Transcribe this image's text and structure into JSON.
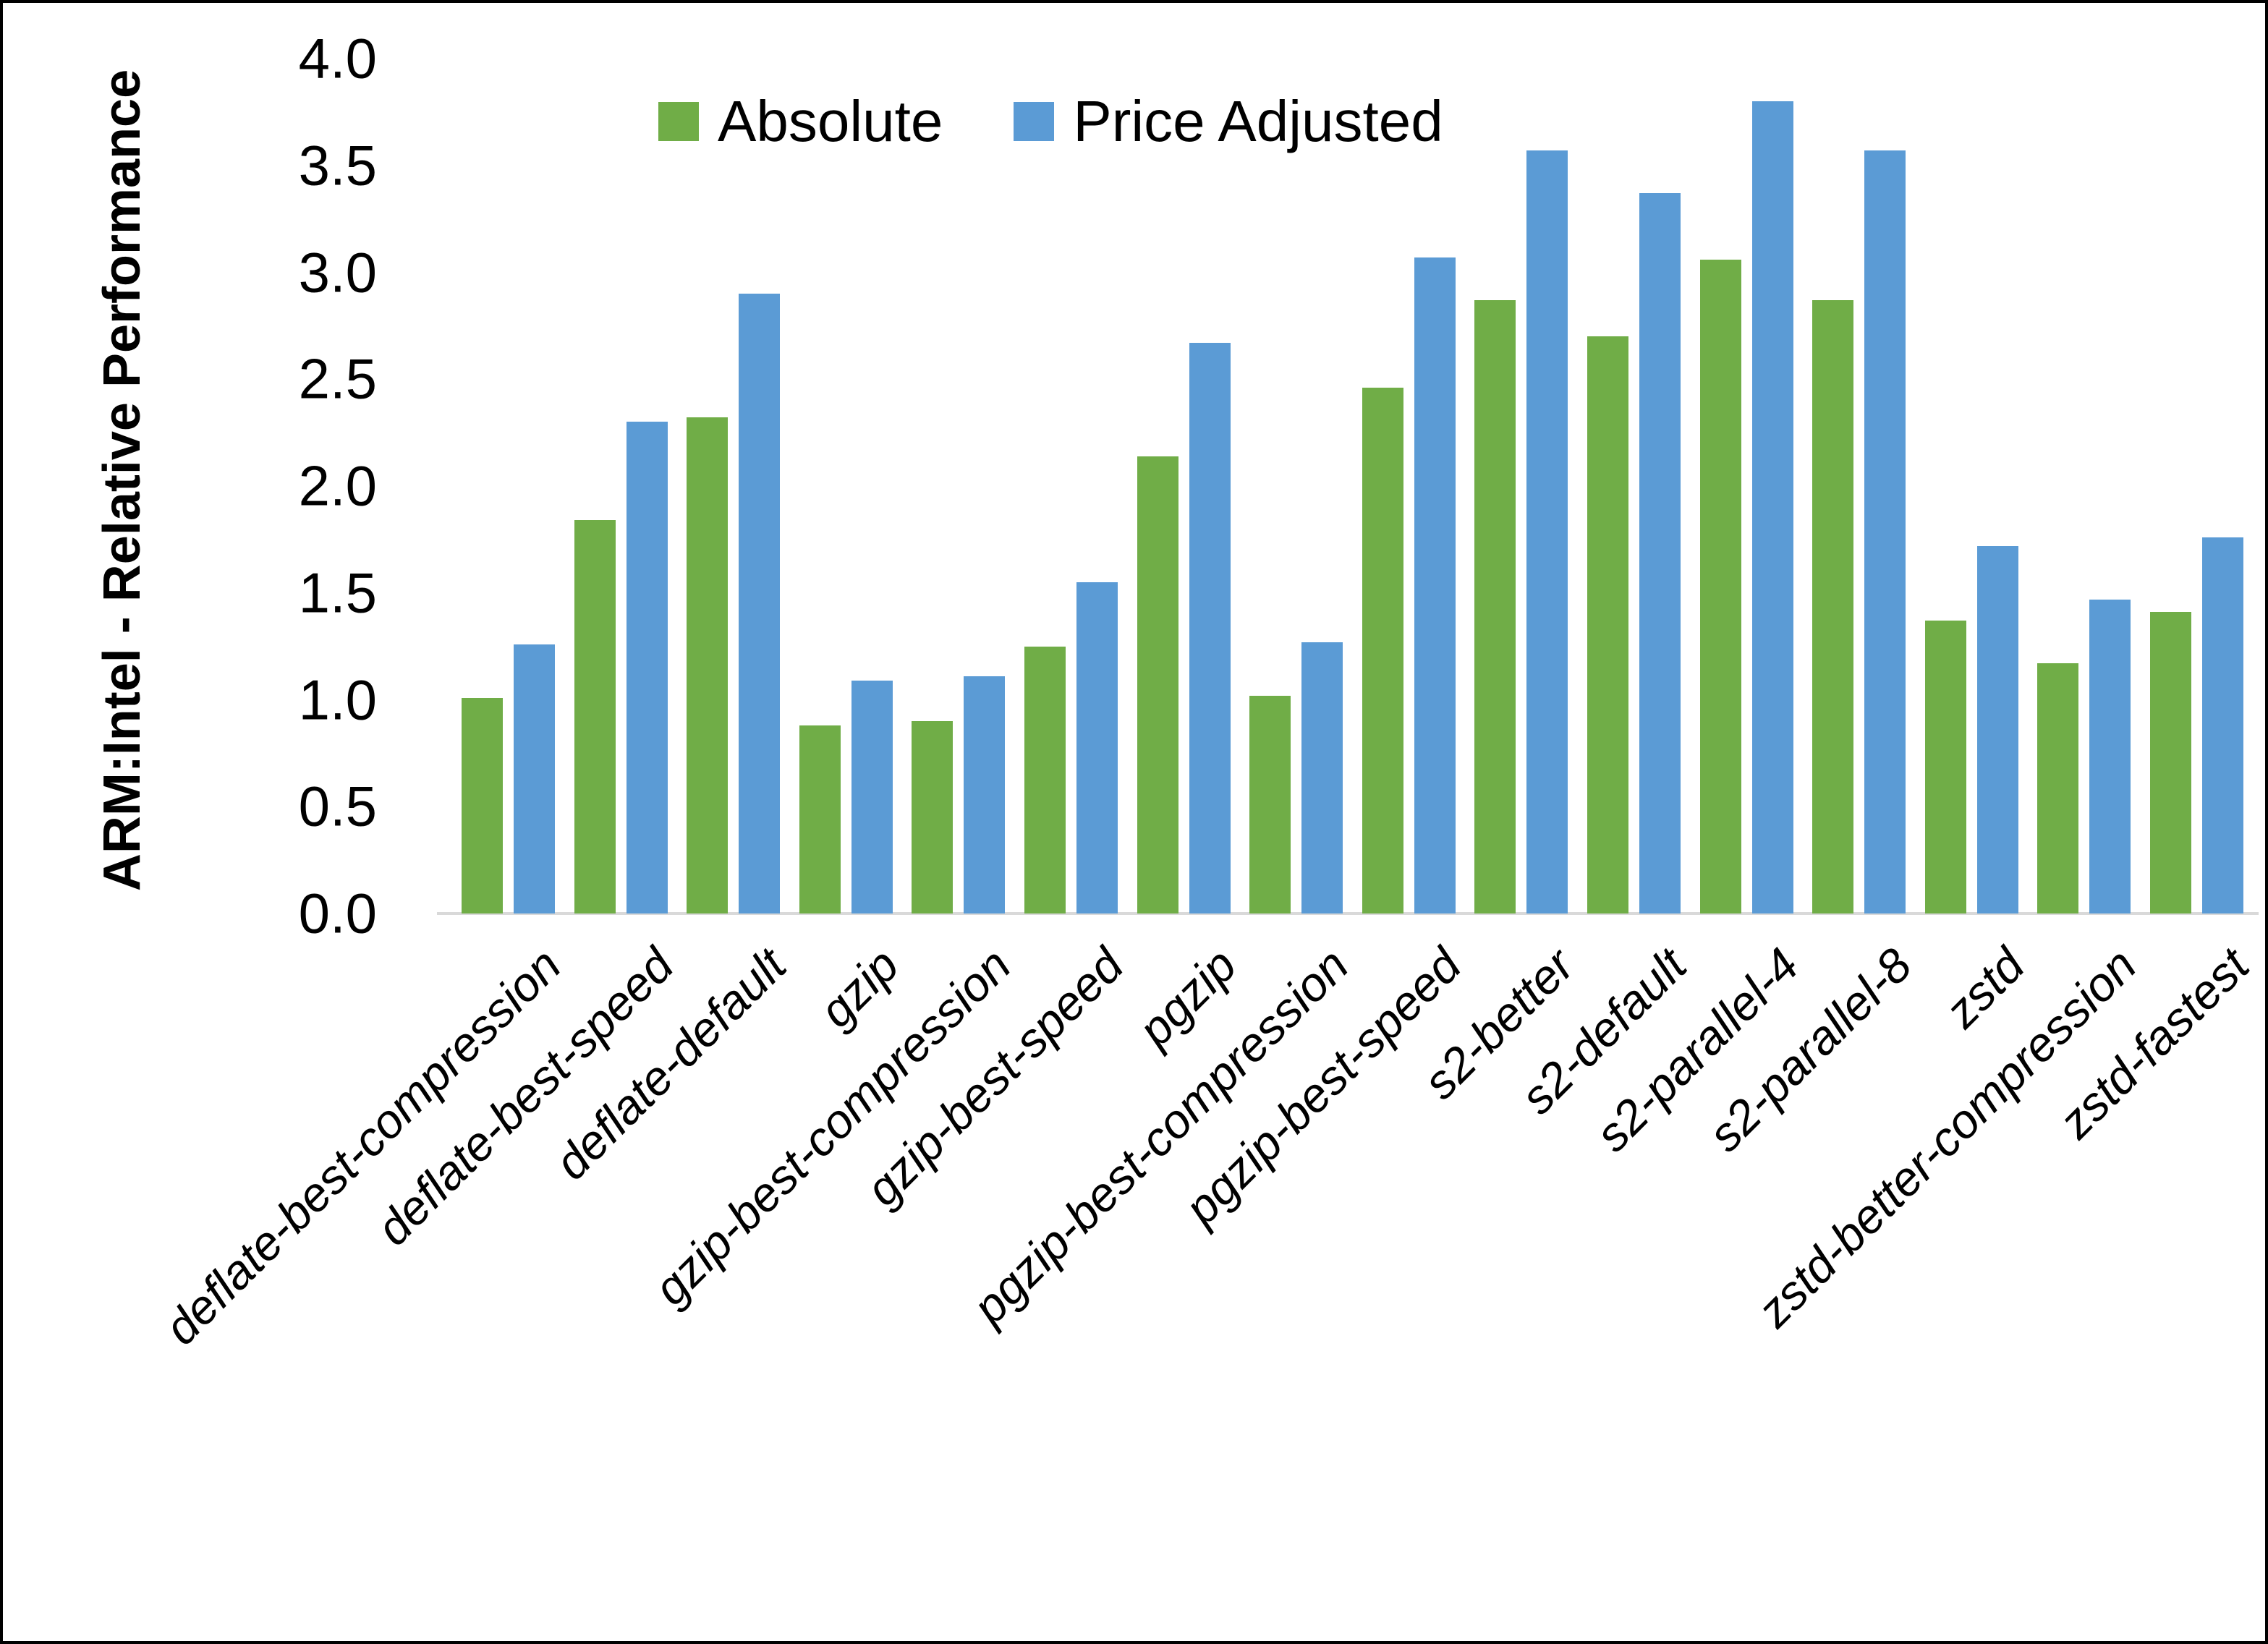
{
  "chart_data": {
    "type": "bar",
    "title": "",
    "xlabel": "",
    "ylabel": "ARM:Intel - Relative Performance",
    "ylim": [
      0.0,
      4.0
    ],
    "ytick_step": 0.5,
    "ytick_labels": [
      "0.0",
      "0.5",
      "1.0",
      "1.5",
      "2.0",
      "2.5",
      "3.0",
      "3.5",
      "4.0"
    ],
    "grid": false,
    "legend_position": "top-center",
    "axis_line_color": "#d9d9d9",
    "categories": [
      "deflate-best-compression",
      "deflate-best-speed",
      "deflate-default",
      "gzip",
      "gzip-best-compression",
      "gzip-best-speed",
      "pgzip",
      "pgzip-best-compression",
      "pgzip-best-speed",
      "s2-better",
      "s2-default",
      "s2-parallel-4",
      "s2-parallel-8",
      "zstd",
      "zstd-better-compression",
      "zstd-fastest"
    ],
    "series": [
      {
        "name": "Absolute",
        "color": "#70AD47",
        "values": [
          1.01,
          1.84,
          2.32,
          0.88,
          0.9,
          1.25,
          2.14,
          1.02,
          2.46,
          2.87,
          2.7,
          3.06,
          2.87,
          1.37,
          1.17,
          1.41
        ]
      },
      {
        "name": "Price Adjusted",
        "color": "#5B9BD5",
        "values": [
          1.26,
          2.3,
          2.9,
          1.09,
          1.11,
          1.55,
          2.67,
          1.27,
          3.07,
          3.57,
          3.37,
          3.8,
          3.57,
          1.72,
          1.47,
          1.76
        ]
      }
    ]
  }
}
